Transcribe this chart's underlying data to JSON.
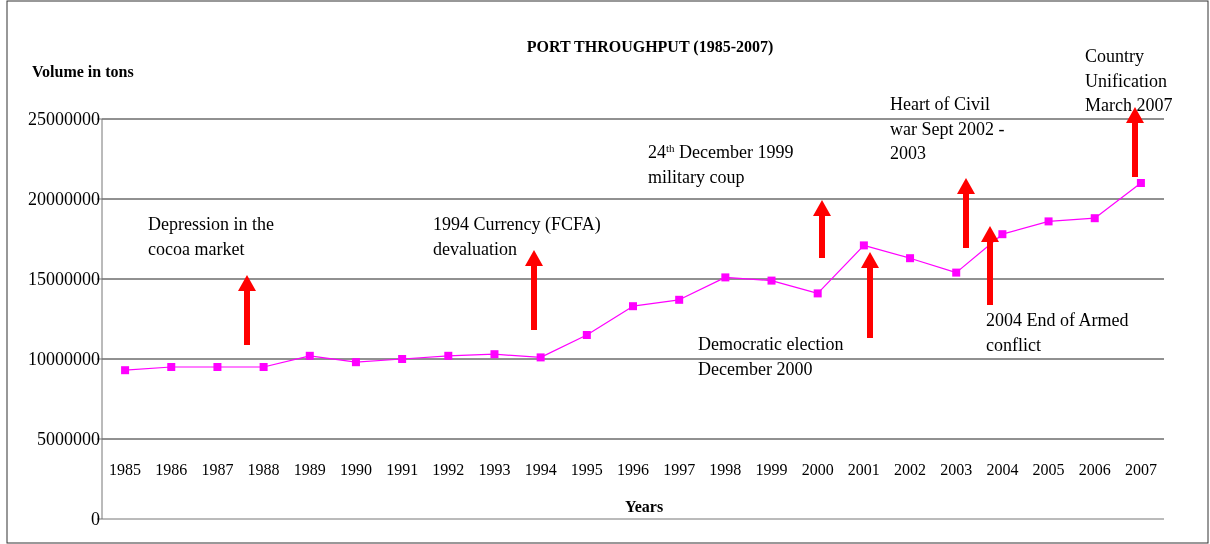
{
  "chart_data": {
    "type": "line",
    "title": "PORT THROUGHPUT (1985-2007)",
    "xlabel": "Years",
    "ylabel": "Volume in tons",
    "categories": [
      "1985",
      "1986",
      "1987",
      "1988",
      "1989",
      "1990",
      "1991",
      "1992",
      "1993",
      "1994",
      "1995",
      "1996",
      "1997",
      "1998",
      "1999",
      "2000",
      "2001",
      "2002",
      "2003",
      "2004",
      "2005",
      "2006",
      "2007"
    ],
    "series": [
      {
        "color": "#ff00ff",
        "values": [
          9300000,
          9500000,
          9500000,
          9500000,
          10200000,
          9800000,
          10000000,
          10200000,
          10300000,
          10100000,
          11500000,
          13300000,
          13700000,
          15100000,
          14900000,
          14100000,
          17100000,
          16300000,
          15400000,
          17800000,
          18600000,
          18800000,
          21000000
        ]
      }
    ],
    "ylim": [
      0,
      25000000
    ],
    "yticks": [
      0,
      5000000,
      10000000,
      15000000,
      20000000,
      25000000
    ],
    "grid": "y",
    "marker": "square",
    "line_style": "solid",
    "annotations": [
      "Depression in the\ncocoa market",
      "1994 Currency (FCFA)\ndevaluation",
      "24$^{th}$ December 1999\nmilitary coup",
      "Democratic election\nDecember 2000",
      "Heart of Civil\nwar Sept 2002 -\n2003",
      "2004 End of Armed\nconflict",
      "Country\nUnification\nMarch 2007"
    ]
  }
}
